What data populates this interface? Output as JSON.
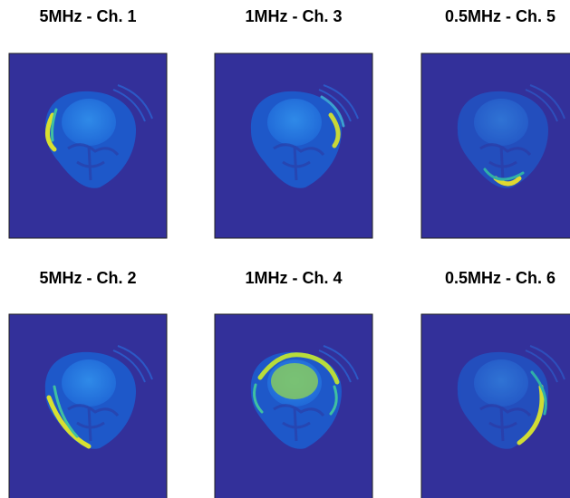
{
  "panels": [
    {
      "title": "5MHz - Ch. 1"
    },
    {
      "title": "1MHz - Ch. 3"
    },
    {
      "title": "0.5MHz - Ch. 5"
    },
    {
      "title": "5MHz - Ch. 2"
    },
    {
      "title": "1MHz - Ch. 4"
    },
    {
      "title": "0.5MHz - Ch. 6"
    }
  ]
}
